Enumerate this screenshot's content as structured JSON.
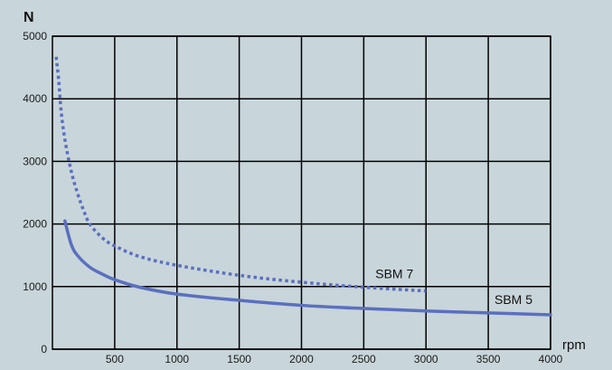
{
  "chart_data": {
    "type": "line",
    "xlabel": "rpm",
    "ylabel": "N",
    "xlim": [
      0,
      4000
    ],
    "ylim": [
      0,
      5000
    ],
    "xticks": [
      500,
      1000,
      1500,
      2000,
      2500,
      3000,
      3500,
      4000
    ],
    "yticks": [
      0,
      1000,
      2000,
      3000,
      4000,
      5000
    ],
    "grid": true,
    "colors": {
      "background": "#c8d5da",
      "grid": "#000000",
      "series": "#5b6fbf"
    },
    "series": [
      {
        "name": "SBM 7",
        "style": "dotted",
        "x": [
          30,
          50,
          70,
          100,
          150,
          200,
          250,
          300,
          400,
          500,
          700,
          1000,
          1500,
          2000,
          2500,
          3000
        ],
        "y": [
          4670,
          4300,
          3800,
          3350,
          2850,
          2500,
          2220,
          2000,
          1780,
          1650,
          1480,
          1340,
          1180,
          1070,
          990,
          930
        ]
      },
      {
        "name": "SBM 5",
        "style": "solid",
        "x": [
          100,
          150,
          200,
          300,
          400,
          500,
          700,
          1000,
          1500,
          2000,
          2500,
          3000,
          3500,
          4000
        ],
        "y": [
          2050,
          1680,
          1500,
          1310,
          1200,
          1110,
          990,
          880,
          780,
          700,
          650,
          610,
          580,
          550
        ]
      }
    ]
  }
}
